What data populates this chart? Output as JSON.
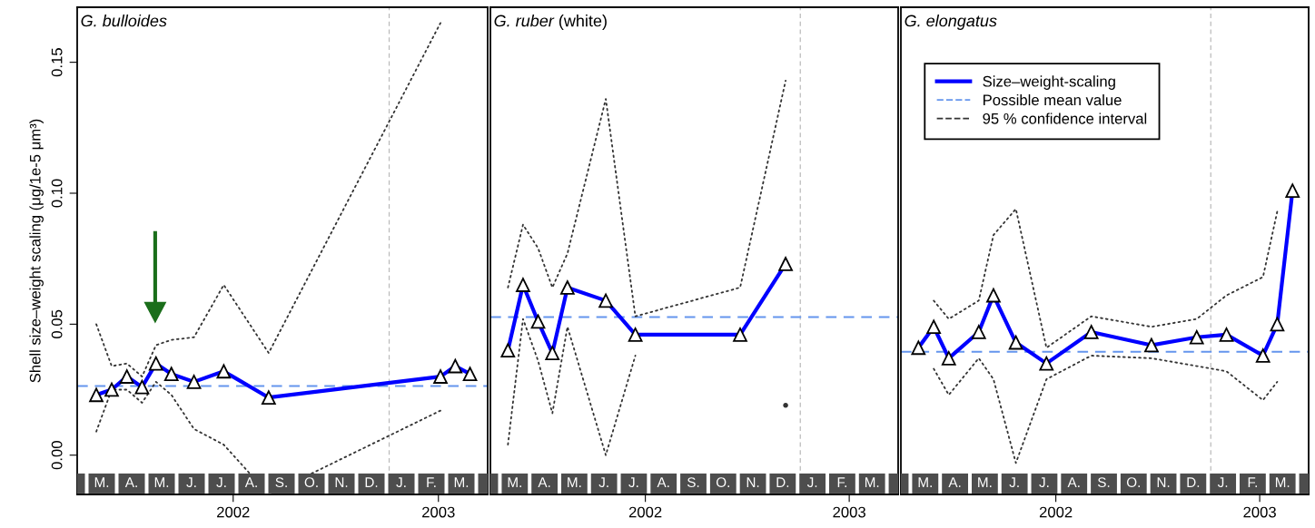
{
  "chart_data": [
    {
      "type": "line",
      "title": "G. bulloides",
      "ylabel": "Shell size–weight scaling (μg/1e-5 μm³)",
      "x": [
        2001.333,
        2001.408,
        2001.482,
        2001.556,
        2001.624,
        2001.699,
        2001.809,
        2001.954,
        2002.173,
        2003.01,
        2003.082,
        2003.154
      ],
      "series": [
        {
          "color": "#0000ff",
          "marker": "triangle",
          "line_style": "solid",
          "values": [
            0.023,
            0.025,
            0.03,
            0.026,
            0.035,
            0.031,
            0.028,
            0.032,
            0.022,
            0.03,
            0.034,
            0.031
          ]
        },
        {
          "color": "#333333",
          "marker": "none",
          "line_style": "dotted",
          "values": [
            0.05,
            0.034,
            0.035,
            0.03,
            0.042,
            0.044,
            0.045,
            0.065,
            0.039,
            0.165,
            null,
            null
          ]
        },
        {
          "color": "#333333",
          "marker": "none",
          "line_style": "dotted",
          "values": [
            0.009,
            0.025,
            0.025,
            0.02,
            0.028,
            0.023,
            0.01,
            0.004,
            -0.015,
            0.017,
            null,
            null
          ]
        }
      ],
      "ref_lines": [
        {
          "axis": "y",
          "value": 0.0264,
          "color": "#6495ed",
          "line_style": "dashed"
        },
        {
          "axis": "x",
          "value": 2002.76,
          "color": "#bbbbbb",
          "line_style": "dashed"
        }
      ],
      "annotations": [
        "M.",
        "A.",
        "M.",
        "J.",
        "J.",
        "A.",
        "S.",
        "O.",
        "N.",
        "D.",
        "J.",
        "F.",
        "M."
      ],
      "xlim": [
        2001.24,
        2003.24
      ],
      "ylim": [
        -0.015,
        0.171
      ],
      "xticks": [
        2002,
        2003
      ],
      "yticks": [
        {
          "value": 0,
          "label": "0.00"
        },
        {
          "value": 0.05,
          "label": "0.05"
        },
        {
          "value": 0.1,
          "label": "0.10"
        },
        {
          "value": 0.15,
          "label": "0.15"
        }
      ],
      "grid": false,
      "legend": false
    },
    {
      "type": "line",
      "title": "G. ruber (white)",
      "x": [
        2001.326,
        2001.4,
        2001.474,
        2001.544,
        2001.618,
        2001.806,
        2001.951,
        2002.465,
        2002.688
      ],
      "series": [
        {
          "color": "#0000ff",
          "marker": "triangle",
          "line_style": "solid",
          "values": [
            0.04,
            0.065,
            0.051,
            0.039,
            0.064,
            0.059,
            0.046,
            0.046,
            0.073
          ]
        },
        {
          "color": "#333333",
          "marker": "none",
          "line_style": "dotted",
          "values": [
            0.064,
            0.088,
            0.079,
            0.064,
            0.077,
            0.136,
            0.053,
            0.064,
            0.143
          ]
        },
        {
          "color": "#333333",
          "marker": "none",
          "line_style": "dotted",
          "values": [
            0.004,
            0.052,
            0.036,
            0.016,
            0.049,
            0.0,
            0.038,
            null,
            0.019
          ]
        }
      ],
      "ref_lines": [
        {
          "axis": "y",
          "value": 0.0527,
          "color": "#6495ed",
          "line_style": "dashed"
        },
        {
          "axis": "x",
          "value": 2002.76,
          "color": "#bbbbbb",
          "line_style": "dashed"
        }
      ],
      "annotations": [
        "M.",
        "A.",
        "M.",
        "J.",
        "J.",
        "A.",
        "S.",
        "O.",
        "N.",
        "D.",
        "J.",
        "F.",
        "M."
      ],
      "xlim": [
        2001.24,
        2003.24
      ],
      "ylim": [
        -0.015,
        0.171
      ],
      "xticks": [
        2002,
        2003
      ],
      "tick_labels": "x",
      "grid": false,
      "legend": false
    },
    {
      "type": "line",
      "title": "G. elongatus",
      "x": [
        2001.326,
        2001.401,
        2001.475,
        2001.622,
        2001.694,
        2001.804,
        2001.954,
        2002.174,
        2002.469,
        2002.691,
        2002.837,
        2003.016,
        2003.086,
        2003.161
      ],
      "series": [
        {
          "name": "Size–weight-scaling",
          "color": "#0000ff",
          "marker": "triangle",
          "line_style": "solid",
          "values": [
            0.041,
            0.049,
            0.037,
            0.047,
            0.061,
            0.043,
            0.035,
            0.047,
            0.042,
            0.045,
            0.046,
            0.038,
            0.05,
            0.101
          ]
        },
        {
          "name": "95 % confidence interval",
          "color": "#333333",
          "marker": "none",
          "line_style": "dotted",
          "values": [
            null,
            0.059,
            0.052,
            0.059,
            0.084,
            0.094,
            0.041,
            0.053,
            0.049,
            0.052,
            0.061,
            0.068,
            0.093,
            null
          ]
        },
        {
          "color": "#333333",
          "marker": "none",
          "line_style": "dotted",
          "values": [
            null,
            0.033,
            0.023,
            0.037,
            0.029,
            -0.003,
            0.029,
            0.038,
            0.037,
            0.034,
            0.032,
            0.021,
            0.028,
            null
          ]
        }
      ],
      "ref_lines": [
        {
          "axis": "y",
          "value": 0.0395,
          "label": "Possible mean value",
          "color": "#6495ed",
          "line_style": "dashed"
        },
        {
          "axis": "x",
          "value": 2002.76,
          "color": "#bbbbbb",
          "line_style": "dashed"
        }
      ],
      "annotations": [
        "M.",
        "A.",
        "M.",
        "J.",
        "J.",
        "A.",
        "S.",
        "O.",
        "N.",
        "D.",
        "J.",
        "F.",
        "M."
      ],
      "xlim": [
        2001.24,
        2003.24
      ],
      "ylim": [
        -0.015,
        0.171
      ],
      "xticks": [
        2002,
        2003
      ],
      "tick_labels": "x",
      "grid": false,
      "legend": "top left"
    }
  ]
}
